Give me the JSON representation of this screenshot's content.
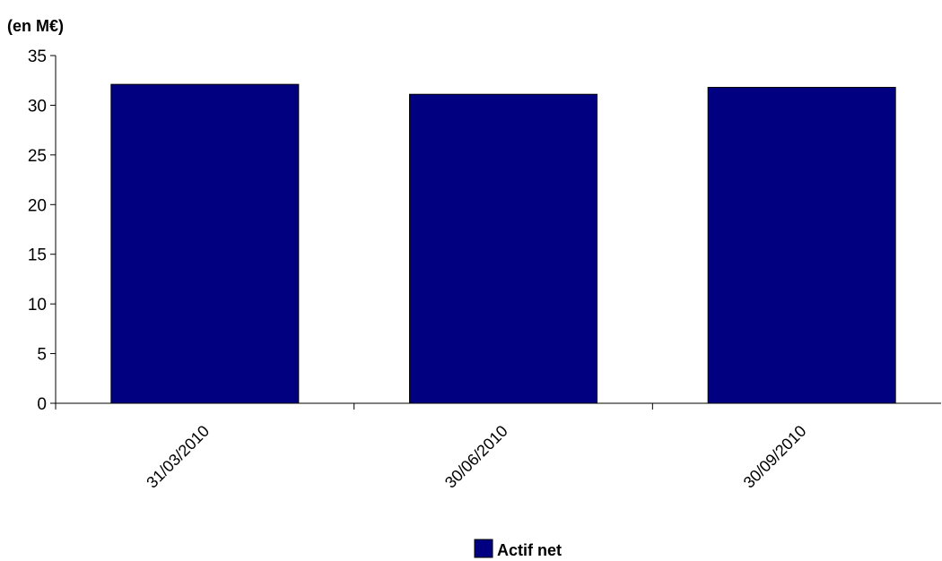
{
  "chart_data": {
    "type": "bar",
    "title": "",
    "ylabel": "(en M€)",
    "xlabel": "",
    "categories": [
      "31/03/2010",
      "30/06/2010",
      "30/09/2010"
    ],
    "series": [
      {
        "name": "Actif net",
        "values": [
          32.1,
          31.1,
          31.8
        ],
        "color": "#000080"
      }
    ],
    "ylim": [
      0,
      35
    ],
    "yticks": [
      0,
      5,
      10,
      15,
      20,
      25,
      30,
      35
    ],
    "grid": false,
    "legend": "bottom-center"
  }
}
